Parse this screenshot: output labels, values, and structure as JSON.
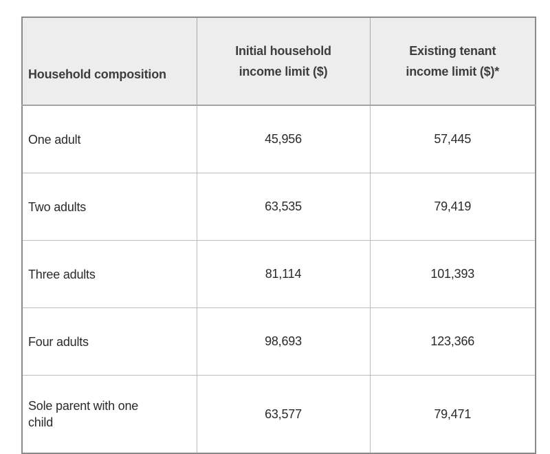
{
  "table": {
    "columns": [
      {
        "label": "Household composition"
      },
      {
        "line1": "Initial household",
        "line2": "income limit ($)"
      },
      {
        "line1": "Existing tenant",
        "line2": "income limit ($)*"
      }
    ],
    "rows": [
      {
        "label": "One adult",
        "initial": "45,956",
        "existing": "57,445"
      },
      {
        "label": "Two adults",
        "initial": "63,535",
        "existing": "79,419"
      },
      {
        "label": "Three adults",
        "initial": "81,114",
        "existing": "101,393"
      },
      {
        "label": "Four adults",
        "initial": "98,693",
        "existing": "123,366"
      },
      {
        "label": "Sole parent with one child",
        "initial": "63,577",
        "existing": "79,471"
      }
    ]
  }
}
